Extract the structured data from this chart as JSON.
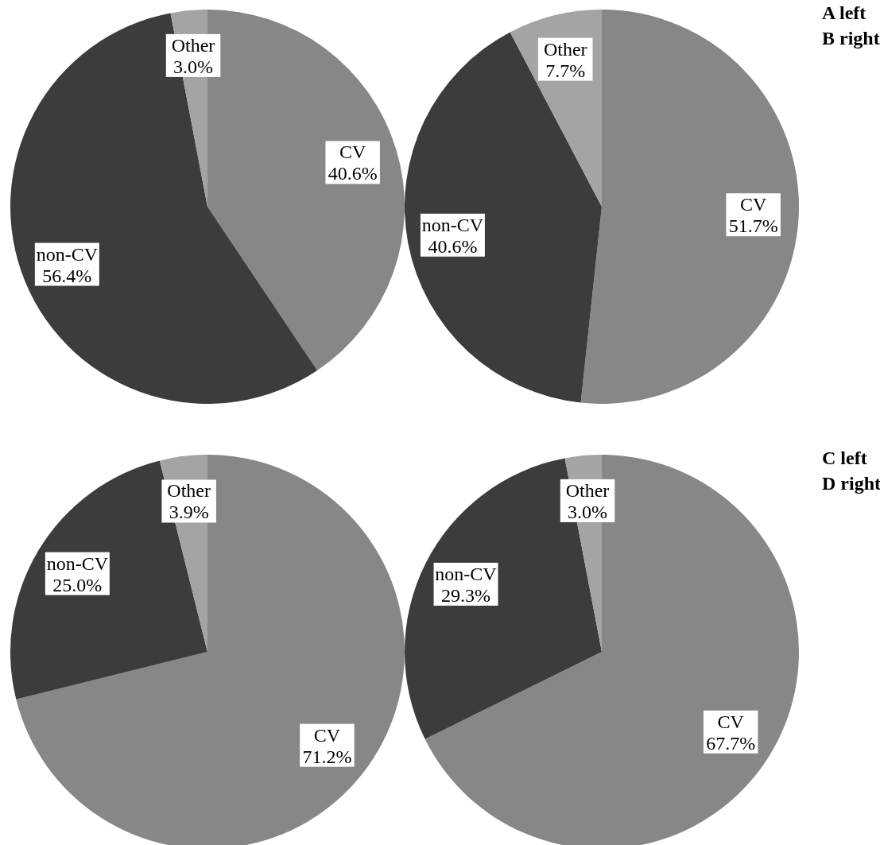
{
  "chart_data": [
    {
      "type": "pie",
      "categories": [
        "CV",
        "non-CV",
        "Other"
      ],
      "values": [
        40.6,
        56.4,
        3.0
      ],
      "colors": [
        "#878787",
        "#3b3c3c",
        "#a4a4a4"
      ],
      "value_labels": [
        "40.6%",
        "56.4%",
        "3.0%"
      ]
    },
    {
      "type": "pie",
      "categories": [
        "CV",
        "non-CV",
        "Other"
      ],
      "values": [
        51.7,
        40.6,
        7.7
      ],
      "colors": [
        "#878787",
        "#3b3c3c",
        "#a4a4a4"
      ],
      "value_labels": [
        "51.7%",
        "40.6%",
        "7.7%"
      ],
      "annotations": [
        "A left",
        "B right"
      ]
    },
    {
      "type": "pie",
      "categories": [
        "CV",
        "non-CV",
        "Other"
      ],
      "values": [
        71.2,
        25.0,
        3.9
      ],
      "colors": [
        "#878787",
        "#3b3c3c",
        "#a4a4a4"
      ],
      "value_labels": [
        "71.2%",
        "25.0%",
        "3.9%"
      ]
    },
    {
      "type": "pie",
      "categories": [
        "CV",
        "non-CV",
        "Other"
      ],
      "values": [
        67.7,
        29.3,
        3.0
      ],
      "colors": [
        "#878787",
        "#3b3c3c",
        "#a4a4a4"
      ],
      "value_labels": [
        "67.7%",
        "29.3%",
        "3.0%"
      ],
      "annotations": [
        "C left",
        "D right"
      ]
    }
  ]
}
